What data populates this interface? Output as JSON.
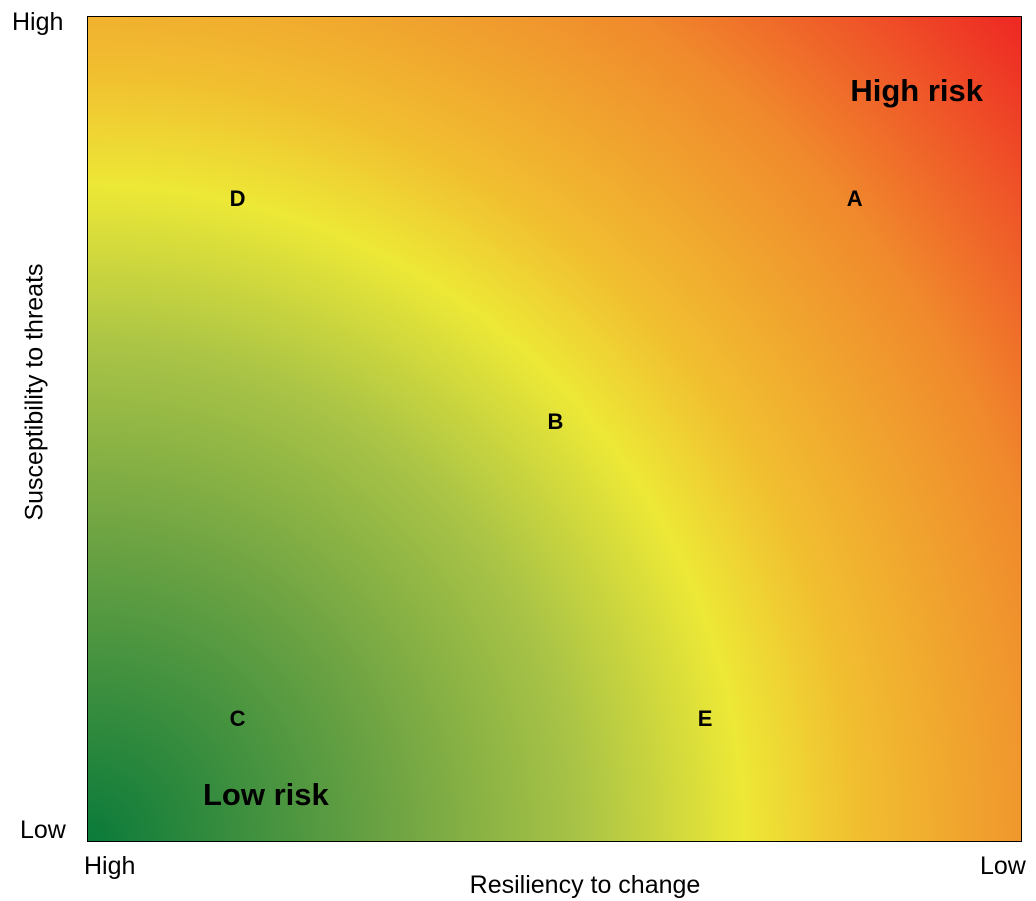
{
  "y_axis": {
    "title": "Susceptibility to threats",
    "high_label": "High",
    "low_label": "Low"
  },
  "x_axis": {
    "title": "Resiliency to change",
    "high_label": "High",
    "low_label": "Low"
  },
  "zones": {
    "high": "High risk",
    "low": "Low risk"
  },
  "points": [
    {
      "label": "A",
      "resiliency": 0.82,
      "susceptibility": 0.78
    },
    {
      "label": "B",
      "resiliency": 0.5,
      "susceptibility": 0.51
    },
    {
      "label": "C",
      "resiliency": 0.16,
      "susceptibility": 0.15
    },
    {
      "label": "D",
      "resiliency": 0.16,
      "susceptibility": 0.78
    },
    {
      "label": "E",
      "resiliency": 0.66,
      "susceptibility": 0.15
    }
  ],
  "colors": {
    "low_risk": "#0a7a3a",
    "mid_green": "#8cb540",
    "threshold_yellow": "#ede836",
    "mid_orange": "#f0a02e",
    "high_risk": "#ee2a24"
  }
}
